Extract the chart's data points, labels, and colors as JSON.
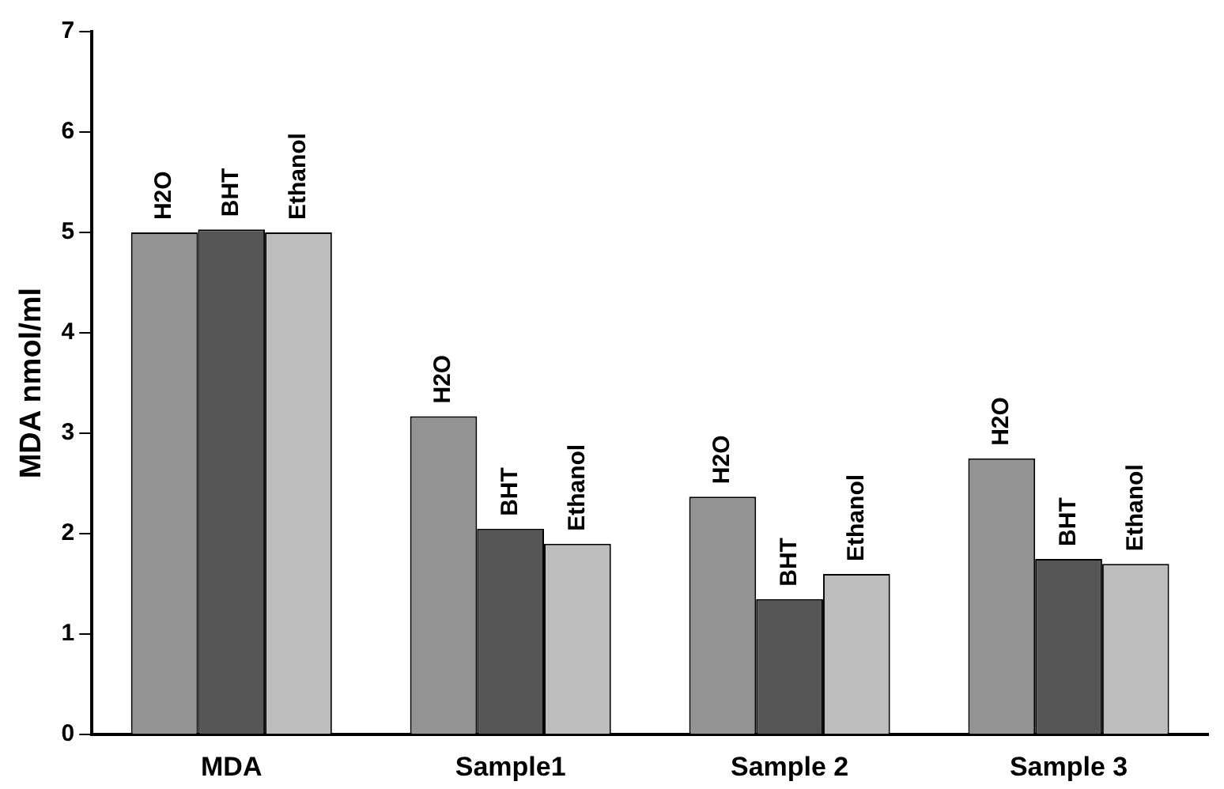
{
  "chart_data": {
    "type": "bar",
    "ylabel": "MDA nmol/ml",
    "categories": [
      "MDA",
      "Sample1",
      "Sample 2",
      "Sample 3"
    ],
    "series": [
      {
        "name": "H2O",
        "color": "#939393",
        "values": [
          5.0,
          3.17,
          2.37,
          2.75
        ]
      },
      {
        "name": "BHT",
        "color": "#555555",
        "values": [
          5.03,
          2.05,
          1.35,
          1.75
        ]
      },
      {
        "name": "Ethanol",
        "color": "#bdbdbd",
        "values": [
          5.0,
          1.9,
          1.6,
          1.7
        ]
      }
    ],
    "ylim": [
      0,
      7
    ],
    "yticks": [
      0,
      1,
      2,
      3,
      4,
      5,
      6,
      7
    ],
    "grid": false,
    "legend": false
  }
}
